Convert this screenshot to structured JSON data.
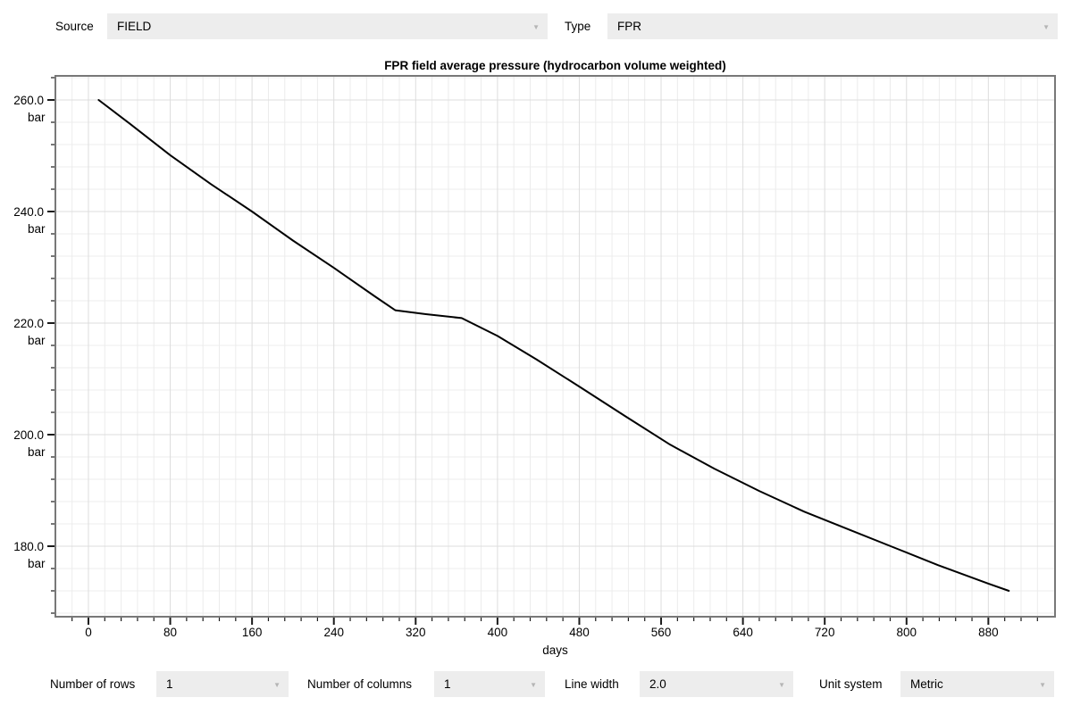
{
  "top_bar": {
    "source": {
      "label": "Source",
      "value": "FIELD"
    },
    "type": {
      "label": "Type",
      "value": "FPR"
    }
  },
  "chart_data": {
    "type": "line",
    "title": "FPR field average pressure (hydrocarbon volume weighted)",
    "xlabel": "days",
    "y_unit": "bar",
    "grid": true,
    "legend": "none",
    "xlim": [
      -32.3,
      945.2
    ],
    "ylim": [
      167.36,
      264.32
    ],
    "x_ticks_major": [
      0,
      80,
      160,
      240,
      320,
      400,
      480,
      560,
      640,
      720,
      800,
      880
    ],
    "x_minor_step": 16,
    "y_ticks_major": [
      260,
      240,
      220,
      200,
      180
    ],
    "y_minor_step": 4,
    "line_color": "#000000",
    "line_width": 2,
    "series": [
      {
        "name": "FPR",
        "x": [
          10,
          40,
          80,
          120,
          160,
          200,
          240,
          280,
          300,
          330,
          365,
          400,
          438,
          481,
          525,
          569,
          612,
          656,
          700,
          745,
          790,
          831,
          880,
          900
        ],
        "y": [
          260.0,
          255.8,
          250.1,
          244.9,
          240.0,
          234.8,
          229.9,
          224.8,
          222.3,
          221.6,
          220.9,
          217.7,
          213.5,
          208.5,
          203.3,
          198.2,
          193.9,
          189.9,
          186.2,
          182.9,
          179.6,
          176.6,
          173.3,
          172.0
        ]
      }
    ]
  },
  "bottom_bar": {
    "rows": {
      "label": "Number of rows",
      "value": "1"
    },
    "columns": {
      "label": "Number of columns",
      "value": "1"
    },
    "line_width": {
      "label": "Line width",
      "value": "2.0"
    },
    "unit_system": {
      "label": "Unit system",
      "value": "Metric"
    }
  },
  "icons": {
    "dropdown_arrow": "▼"
  },
  "colors": {
    "dropdown_bg": "#ededed",
    "grid_minor": "#ececec",
    "grid_major": "#dddddd",
    "frame": "#787878",
    "tick": "#1a1a1a",
    "curve": "#000000"
  }
}
